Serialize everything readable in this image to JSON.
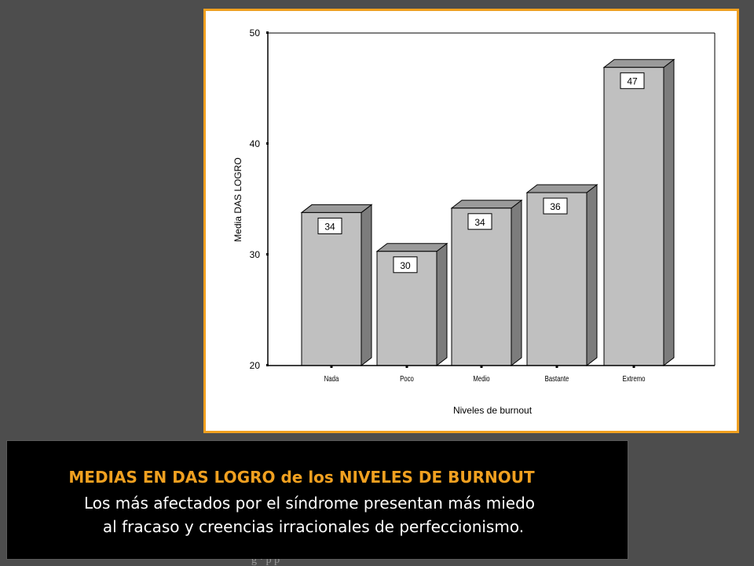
{
  "chart_data": {
    "type": "bar",
    "style": "3d",
    "categories": [
      "Nada",
      "Poco",
      "Medio",
      "Bastante",
      "Extremo"
    ],
    "values": [
      33.8,
      30.3,
      34.2,
      35.6,
      46.9
    ],
    "data_labels": [
      "34",
      "30",
      "34",
      "36",
      "47"
    ],
    "title": "",
    "xlabel": "Niveles de burnout",
    "ylabel": "Media DAS LOGRO",
    "ylim": [
      20,
      50
    ],
    "yticks": [
      20,
      30,
      40,
      50
    ],
    "grid": false,
    "colors": {
      "bar_front": "#c0c0c0",
      "bar_top": "#9a9a9a",
      "bar_side": "#7c7c7c",
      "frame_border": "#f0a020"
    }
  },
  "caption": {
    "title": "MEDIAS EN DAS LOGRO de los NIVELES DE BURNOUT",
    "line1": "Los más afectados por el síndrome presentan más miedo",
    "line2": "al fracaso y creencias irracionales de perfeccionismo.",
    "title_color": "#f0a020"
  },
  "footer": {
    "partial_text": "g  ·  p     p"
  }
}
